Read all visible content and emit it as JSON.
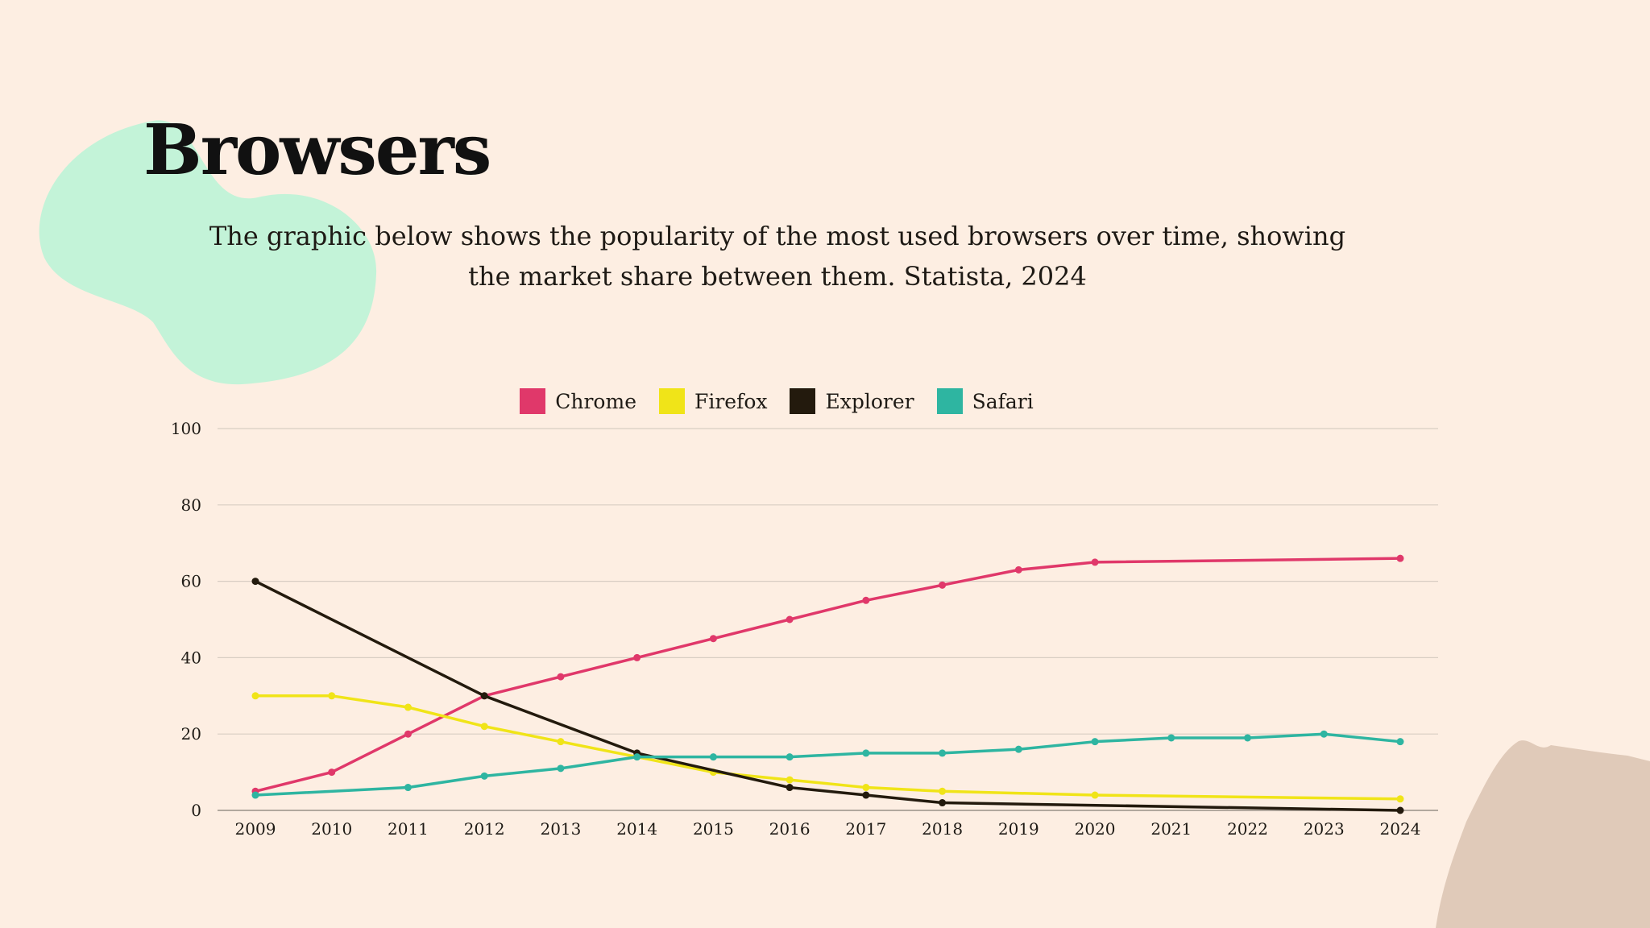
{
  "colors": {
    "background": "#FDEEE2",
    "blob_green": "#C3F3D8",
    "blob_tan": "#E0CAB9"
  },
  "slide": {
    "title": "Browsers",
    "subtitle": "The graphic below shows the popularity of the most used browsers over time, showing the market share between them. Statista, 2024"
  },
  "chart_data": {
    "type": "line",
    "title": "",
    "xlabel": "",
    "ylabel": "",
    "x": [
      "2009",
      "2010",
      "2011",
      "2012",
      "2013",
      "2014",
      "2015",
      "2016",
      "2017",
      "2018",
      "2019",
      "2020",
      "2021",
      "2022",
      "2023",
      "2024"
    ],
    "ylim": [
      0,
      100
    ],
    "yticks": [
      "0",
      "20",
      "40",
      "60",
      "80",
      "100"
    ],
    "grid": true,
    "legend_position": "top-center",
    "series": [
      {
        "name": "Chrome",
        "color": "#E0386A",
        "values": [
          5,
          10,
          20,
          30,
          35,
          40,
          45,
          50,
          55,
          59,
          63,
          65,
          null,
          null,
          null,
          66
        ]
      },
      {
        "name": "Firefox",
        "color": "#F0E418",
        "values": [
          30,
          30,
          27,
          22,
          18,
          null,
          10,
          8,
          6,
          5,
          null,
          4,
          null,
          null,
          null,
          3
        ]
      },
      {
        "name": "Explorer",
        "color": "#231A0D",
        "values": [
          60,
          null,
          null,
          30,
          null,
          15,
          null,
          6,
          4,
          2,
          null,
          null,
          null,
          null,
          null,
          0
        ]
      },
      {
        "name": "Safari",
        "color": "#2EB5A1",
        "values": [
          4,
          null,
          6,
          9,
          11,
          14,
          14,
          14,
          15,
          15,
          16,
          18,
          19,
          19,
          20,
          18
        ]
      }
    ]
  }
}
